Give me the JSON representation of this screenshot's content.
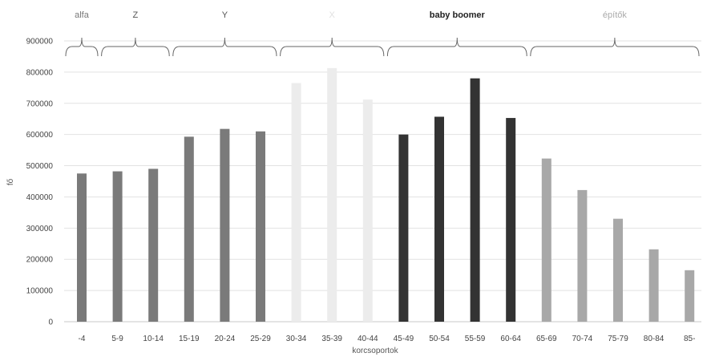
{
  "chart_data": {
    "type": "bar",
    "xlabel": "korcsoportok",
    "ylabel": "fő",
    "ylim": [
      0,
      900000
    ],
    "yticks": [
      0,
      100000,
      200000,
      300000,
      400000,
      500000,
      600000,
      700000,
      800000,
      900000
    ],
    "grid": true,
    "categories": [
      "-4",
      "5-9",
      "10-14",
      "15-19",
      "20-24",
      "25-29",
      "30-34",
      "35-39",
      "40-44",
      "45-49",
      "50-54",
      "55-59",
      "60-64",
      "65-69",
      "70-74",
      "75-79",
      "80-84",
      "85-"
    ],
    "values": [
      475000,
      482000,
      490000,
      593000,
      618000,
      610000,
      765000,
      813000,
      712000,
      600000,
      657000,
      780000,
      653000,
      523000,
      422000,
      330000,
      232000,
      165000
    ],
    "generations": [
      {
        "label": "alfa",
        "start": 0,
        "end": 0,
        "color": "#777777",
        "weight": "normal"
      },
      {
        "label": "Z",
        "start": 1,
        "end": 2,
        "color": "#555555",
        "weight": "normal"
      },
      {
        "label": "Y",
        "start": 3,
        "end": 5,
        "color": "#555555",
        "weight": "normal"
      },
      {
        "label": "X",
        "start": 6,
        "end": 8,
        "color": "#e0e0e0",
        "weight": "normal"
      },
      {
        "label": "baby boomer",
        "start": 9,
        "end": 12,
        "color": "#222222",
        "weight": "bold"
      },
      {
        "label": "építők",
        "start": 13,
        "end": 17,
        "color": "#aaaaaa",
        "weight": "normal"
      }
    ],
    "bar_colors": [
      "#7a7a7a",
      "#7a7a7a",
      "#7a7a7a",
      "#7a7a7a",
      "#7a7a7a",
      "#7a7a7a",
      "#ececec",
      "#ececec",
      "#ececec",
      "#333333",
      "#333333",
      "#333333",
      "#333333",
      "#a8a8a8",
      "#a8a8a8",
      "#a8a8a8",
      "#a8a8a8",
      "#a8a8a8"
    ]
  }
}
